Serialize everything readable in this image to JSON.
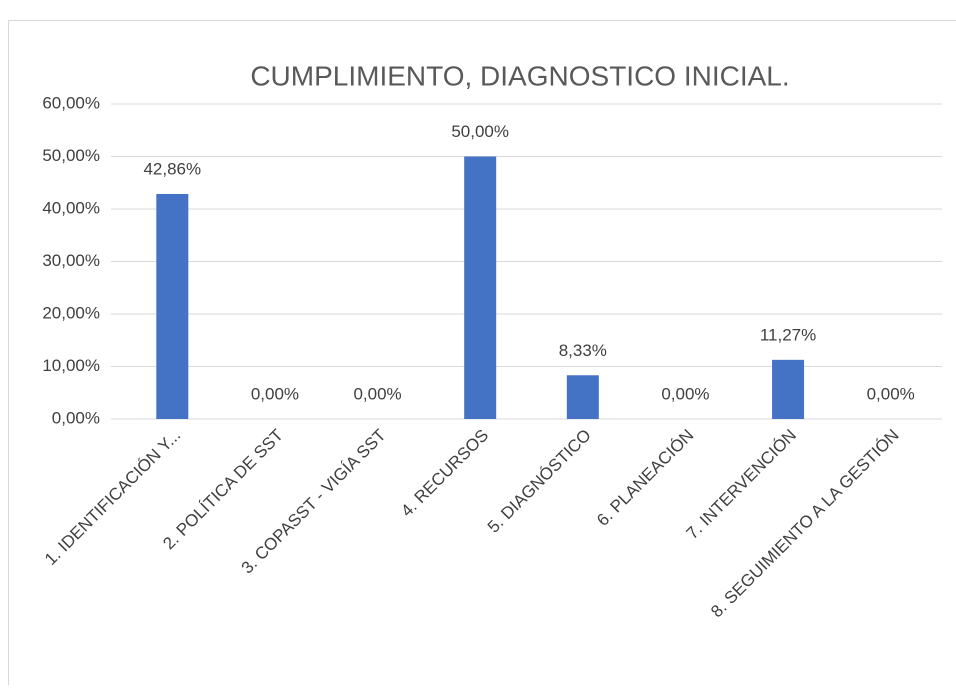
{
  "chart_data": {
    "type": "bar",
    "title": "CUMPLIMIENTO, DIAGNOSTICO INICIAL.",
    "categories": [
      "1. IDENTIFICACIÓN Y...",
      "2. POLÍTICA DE SST",
      "3. COPASST - VIGÍA SST",
      "4. RECURSOS",
      "5. DIAGNÓSTICO",
      "6. PLANEACIÓN",
      "7. INTERVENCIÓN",
      "8. SEGUIMIENTO A LA GESTIÓN"
    ],
    "values": [
      42.86,
      0,
      0,
      50,
      8.33,
      0,
      11.27,
      0
    ],
    "value_labels": [
      "42,86%",
      "0,00%",
      "0,00%",
      "50,00%",
      "8,33%",
      "0,00%",
      "11,27%",
      "0,00%"
    ],
    "color": "#4472c4",
    "ylim": [
      0,
      60
    ],
    "yticks": [
      {
        "value": 0,
        "label": "0,00%"
      },
      {
        "value": 10,
        "label": "10,00%"
      },
      {
        "value": 20,
        "label": "20,00%"
      },
      {
        "value": 30,
        "label": "30,00%"
      },
      {
        "value": 40,
        "label": "40,00%"
      },
      {
        "value": 50,
        "label": "50,00%"
      },
      {
        "value": 60,
        "label": "60,00%"
      }
    ],
    "grid": true
  }
}
